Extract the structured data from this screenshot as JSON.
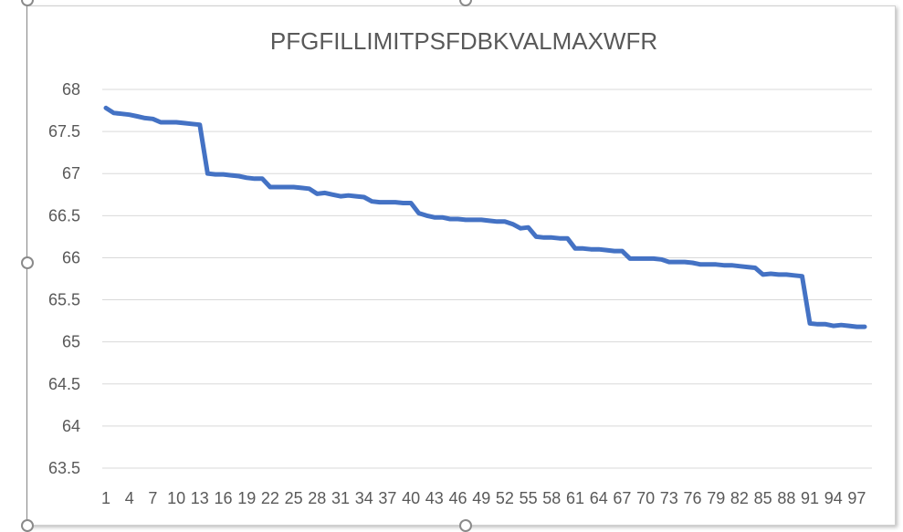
{
  "chart_data": {
    "type": "line",
    "title": "PFGFILLIMITPSFDBKVALMAXWFR",
    "xlabel": "",
    "ylabel": "",
    "ylim": [
      63.5,
      68
    ],
    "yticks": [
      63.5,
      64,
      64.5,
      65,
      65.5,
      66,
      66.5,
      67,
      67.5,
      68
    ],
    "ytick_labels": [
      "63.5",
      "64",
      "64.5",
      "65",
      "65.5",
      "66",
      "66.5",
      "67",
      "67.5",
      "68"
    ],
    "xlim": [
      1,
      98
    ],
    "xticks": [
      1,
      4,
      7,
      10,
      13,
      16,
      19,
      22,
      25,
      28,
      31,
      34,
      37,
      40,
      43,
      46,
      49,
      52,
      55,
      58,
      61,
      64,
      67,
      70,
      73,
      76,
      79,
      82,
      85,
      88,
      91,
      94,
      97
    ],
    "xtick_labels": [
      "1",
      "4",
      "7",
      "10",
      "13",
      "16",
      "19",
      "22",
      "25",
      "28",
      "31",
      "34",
      "37",
      "40",
      "43",
      "46",
      "49",
      "52",
      "55",
      "58",
      "61",
      "64",
      "67",
      "70",
      "73",
      "76",
      "79",
      "82",
      "85",
      "88",
      "91",
      "94",
      "97"
    ],
    "grid": true,
    "line_color": "#4472C4",
    "series": [
      {
        "x": [
          1,
          2,
          3,
          4,
          5,
          6,
          7,
          8,
          9,
          10,
          11,
          12,
          13,
          14,
          15,
          16,
          17,
          18,
          19,
          20,
          21,
          22,
          23,
          24,
          25,
          26,
          27,
          28,
          29,
          30,
          31,
          32,
          33,
          34,
          35,
          36,
          37,
          38,
          39,
          40,
          41,
          42,
          43,
          44,
          45,
          46,
          47,
          48,
          49,
          50,
          51,
          52,
          53,
          54,
          55,
          56,
          57,
          58,
          59,
          60,
          61,
          62,
          63,
          64,
          65,
          66,
          67,
          68,
          69,
          70,
          71,
          72,
          73,
          74,
          75,
          76,
          77,
          78,
          79,
          80,
          81,
          82,
          83,
          84,
          85,
          86,
          87,
          88,
          89,
          90,
          91,
          92,
          93,
          94,
          95,
          96,
          97,
          98
        ],
        "values": [
          67.78,
          67.72,
          67.71,
          67.7,
          67.68,
          67.66,
          67.65,
          67.61,
          67.61,
          67.61,
          67.6,
          67.59,
          67.58,
          67.0,
          66.99,
          66.99,
          66.98,
          66.97,
          66.95,
          66.94,
          66.94,
          66.84,
          66.84,
          66.84,
          66.84,
          66.83,
          66.82,
          66.76,
          66.77,
          66.75,
          66.73,
          66.74,
          66.73,
          66.72,
          66.67,
          66.66,
          66.66,
          66.66,
          66.65,
          66.65,
          66.53,
          66.5,
          66.48,
          66.48,
          66.46,
          66.46,
          66.45,
          66.45,
          66.45,
          66.44,
          66.43,
          66.43,
          66.4,
          66.35,
          66.36,
          66.25,
          66.24,
          66.24,
          66.23,
          66.23,
          66.11,
          66.11,
          66.1,
          66.1,
          66.09,
          66.08,
          66.08,
          65.99,
          65.99,
          65.99,
          65.99,
          65.98,
          65.95,
          65.95,
          65.95,
          65.94,
          65.92,
          65.92,
          65.92,
          65.91,
          65.91,
          65.9,
          65.89,
          65.88,
          65.8,
          65.81,
          65.8,
          65.8,
          65.79,
          65.78,
          65.22,
          65.21,
          65.21,
          65.19,
          65.2,
          65.19,
          65.18,
          65.18
        ]
      }
    ]
  }
}
